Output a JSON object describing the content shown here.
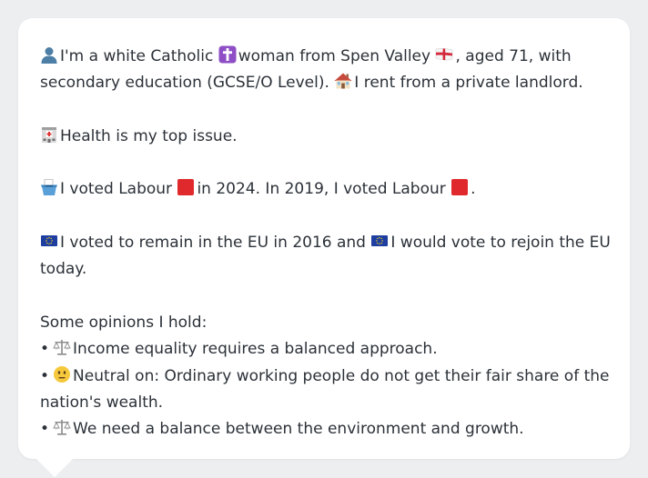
{
  "profile": {
    "line1_prefix": "I'm a white Catholic",
    "line1_mid": "woman from Spen Valley",
    "line1_suffix": ", aged 71, with secondary education (GCSE/O Level).",
    "housing": "I rent from a private landlord.",
    "icons": {
      "person": "person-silhouette-icon",
      "religion": "latin-cross-icon",
      "region": "england-flag-icon",
      "housing": "house-icon"
    }
  },
  "health": {
    "text": "Health is my top issue.",
    "icon": "hospital-icon"
  },
  "vote": {
    "part1": "I voted Labour",
    "part2": "in 2024. In 2019, I voted Labour",
    "part3": ".",
    "icon": "ballot-box-icon",
    "party_icon": "red-square-icon",
    "party_color": "#e0292c"
  },
  "eu": {
    "part1": "I voted to remain in the EU in 2016 and",
    "part2": "I would vote to rejoin the EU today.",
    "icon": "eu-flag-icon"
  },
  "opinions": {
    "heading": "Some opinions I hold:",
    "bullet": "•",
    "items": [
      {
        "icon": "balance-scale-icon",
        "text": "Income equality requires a balanced approach."
      },
      {
        "icon": "neutral-face-icon",
        "text": "Neutral on: Ordinary working people do not get their fair share of the nation's wealth."
      },
      {
        "icon": "balance-scale-icon",
        "text": "We need a balance between the environment and growth."
      }
    ]
  }
}
